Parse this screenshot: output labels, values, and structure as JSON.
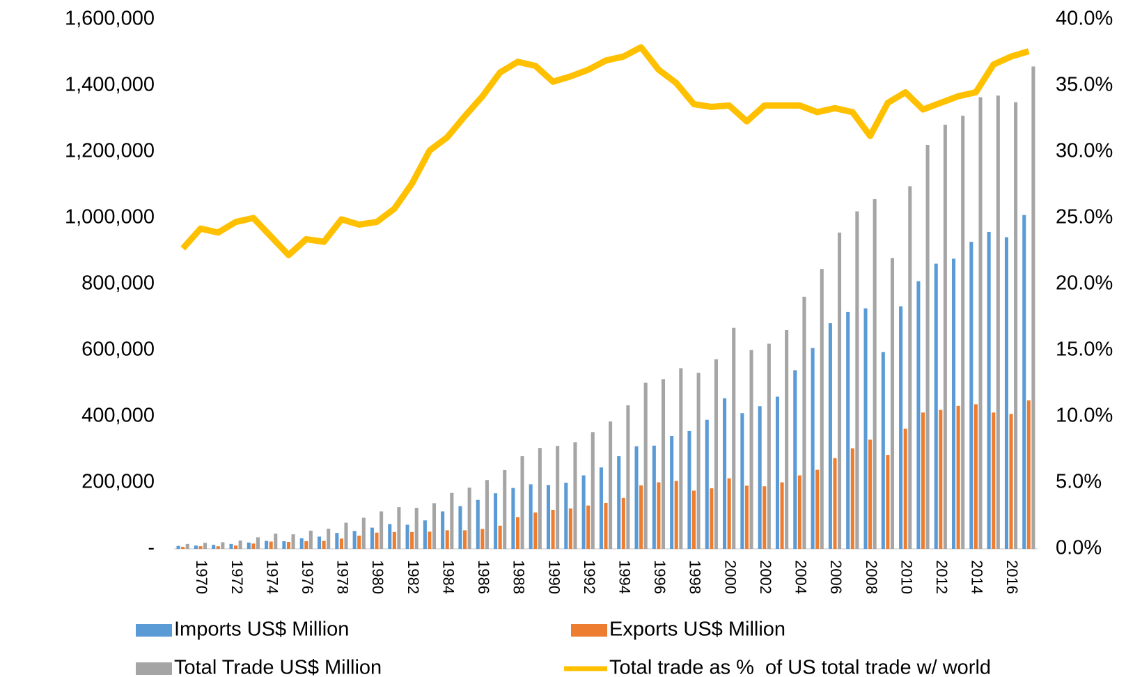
{
  "chart_data": {
    "type": "bar-line",
    "categories": [
      null,
      "1970",
      null,
      "1972",
      null,
      "1974",
      null,
      "1976",
      null,
      "1978",
      null,
      "1980",
      null,
      "1982",
      null,
      "1984",
      null,
      "1986",
      null,
      "1988",
      null,
      "1990",
      null,
      "1992",
      null,
      "1994",
      null,
      "1996",
      null,
      "1998",
      null,
      "2000",
      null,
      "2002",
      null,
      "2004",
      null,
      "2006",
      null,
      "2008",
      null,
      "2010",
      null,
      "2012",
      null,
      "2014",
      null,
      "2016",
      null
    ],
    "series": [
      {
        "name": "Imports US$ Million",
        "color": "#5b9bd5",
        "type": "bar",
        "values": [
          9000,
          10000,
          12000,
          15000,
          19000,
          24000,
          23000,
          32000,
          37000,
          48000,
          54000,
          64000,
          75000,
          73000,
          86000,
          113000,
          129000,
          148000,
          168000,
          184000,
          195000,
          193000,
          200000,
          222000,
          246000,
          280000,
          310000,
          312000,
          341000,
          356000,
          390000,
          455000,
          410000,
          431000,
          460000,
          540000,
          607000,
          682000,
          716000,
          727000,
          595000,
          733000,
          809000,
          862000,
          877000,
          928000,
          958000,
          942000,
          1009000
        ]
      },
      {
        "name": "Exports US$ Million",
        "color": "#ed7d31",
        "type": "bar",
        "values": [
          6000,
          8000,
          8000,
          10000,
          16000,
          22000,
          21000,
          23000,
          24000,
          31000,
          40000,
          49000,
          51000,
          51000,
          52000,
          56000,
          56000,
          60000,
          70000,
          96000,
          110000,
          118000,
          122000,
          131000,
          139000,
          154000,
          192000,
          201000,
          205000,
          176000,
          183000,
          213000,
          191000,
          189000,
          201000,
          222000,
          239000,
          274000,
          304000,
          330000,
          284000,
          363000,
          412000,
          420000,
          432000,
          437000,
          412000,
          408000,
          449000
        ]
      },
      {
        "name": "Total Trade US$ Million",
        "color": "#a5a5a5",
        "type": "bar",
        "values": [
          15000,
          18000,
          20000,
          25000,
          35000,
          46000,
          44000,
          55000,
          61000,
          79000,
          94000,
          113000,
          126000,
          124000,
          138000,
          169000,
          185000,
          208000,
          238000,
          280000,
          305000,
          311000,
          322000,
          353000,
          385000,
          434000,
          502000,
          513000,
          546000,
          532000,
          573000,
          668000,
          601000,
          620000,
          661000,
          762000,
          846000,
          956000,
          1020000,
          1057000,
          879000,
          1096000,
          1221000,
          1282000,
          1309000,
          1365000,
          1370000,
          1350000,
          1458000
        ]
      },
      {
        "name": "Total trade as %  of US total trade w/ world",
        "color": "#ffc000",
        "type": "line",
        "axis": "y2",
        "values": [
          22.7,
          24.2,
          23.9,
          24.7,
          25.0,
          23.6,
          22.2,
          23.4,
          23.2,
          24.9,
          24.5,
          24.7,
          25.7,
          27.6,
          30.1,
          31.1,
          32.7,
          34.2,
          36.0,
          36.8,
          36.5,
          35.3,
          35.7,
          36.2,
          36.9,
          37.2,
          37.9,
          36.2,
          35.2,
          33.6,
          33.4,
          33.5,
          32.3,
          33.5,
          33.5,
          33.5,
          33.0,
          33.3,
          33.0,
          31.2,
          33.7,
          34.5,
          33.2,
          33.7,
          34.2,
          34.5,
          36.6,
          37.2,
          37.6
        ]
      }
    ],
    "ylim": [
      0,
      1600000
    ],
    "yticks": [
      {
        "value": 0,
        "label": "-"
      },
      {
        "value": 200000,
        "label": "200,000"
      },
      {
        "value": 400000,
        "label": "400,000"
      },
      {
        "value": 600000,
        "label": "600,000"
      },
      {
        "value": 800000,
        "label": "800,000"
      },
      {
        "value": 1000000,
        "label": "1,000,000"
      },
      {
        "value": 1200000,
        "label": "1,200,000"
      },
      {
        "value": 1400000,
        "label": "1,400,000"
      },
      {
        "value": 1600000,
        "label": "1,600,000"
      }
    ],
    "y2lim": [
      0,
      40
    ],
    "y2ticks": [
      {
        "value": 0,
        "label": "0.0%"
      },
      {
        "value": 5,
        "label": "5.0%"
      },
      {
        "value": 10,
        "label": "10.0%"
      },
      {
        "value": 15,
        "label": "15.0%"
      },
      {
        "value": 20,
        "label": "20.0%"
      },
      {
        "value": 25,
        "label": "25.0%"
      },
      {
        "value": 30,
        "label": "30.0%"
      },
      {
        "value": 35,
        "label": "35.0%"
      },
      {
        "value": 40,
        "label": "40.0%"
      }
    ],
    "grid": false,
    "legend": "bottom"
  }
}
